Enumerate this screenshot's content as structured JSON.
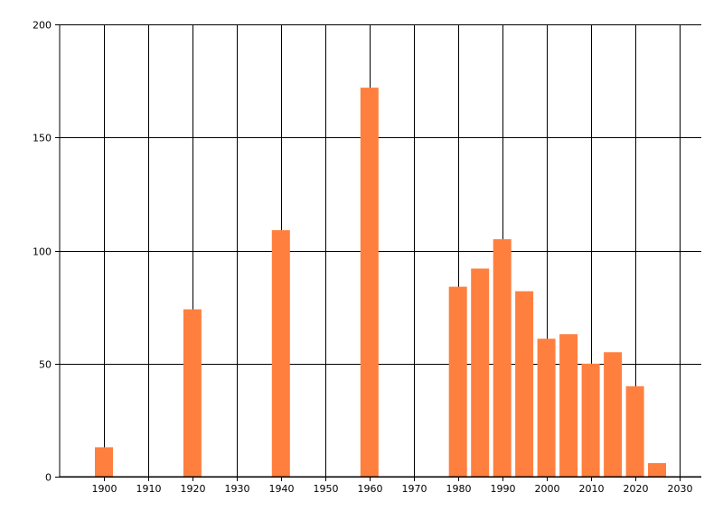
{
  "chart_data": {
    "type": "bar",
    "x": [
      1900,
      1920,
      1940,
      1960,
      1980,
      1985,
      1990,
      1995,
      2000,
      2005,
      2010,
      2015,
      2020,
      2025
    ],
    "values": [
      13,
      74,
      109,
      172,
      84,
      92,
      105,
      82,
      61,
      63,
      50,
      55,
      40,
      6
    ],
    "xlim": [
      1890,
      2035
    ],
    "ylim": [
      0,
      200
    ],
    "x_ticks": [
      1900,
      1910,
      1920,
      1930,
      1940,
      1950,
      1960,
      1970,
      1980,
      1990,
      2000,
      2010,
      2020,
      2030
    ],
    "y_ticks": [
      0,
      50,
      100,
      150,
      200
    ],
    "grid": true,
    "bar_color": "#ff7f3f",
    "title": "",
    "xlabel": "",
    "ylabel": ""
  }
}
